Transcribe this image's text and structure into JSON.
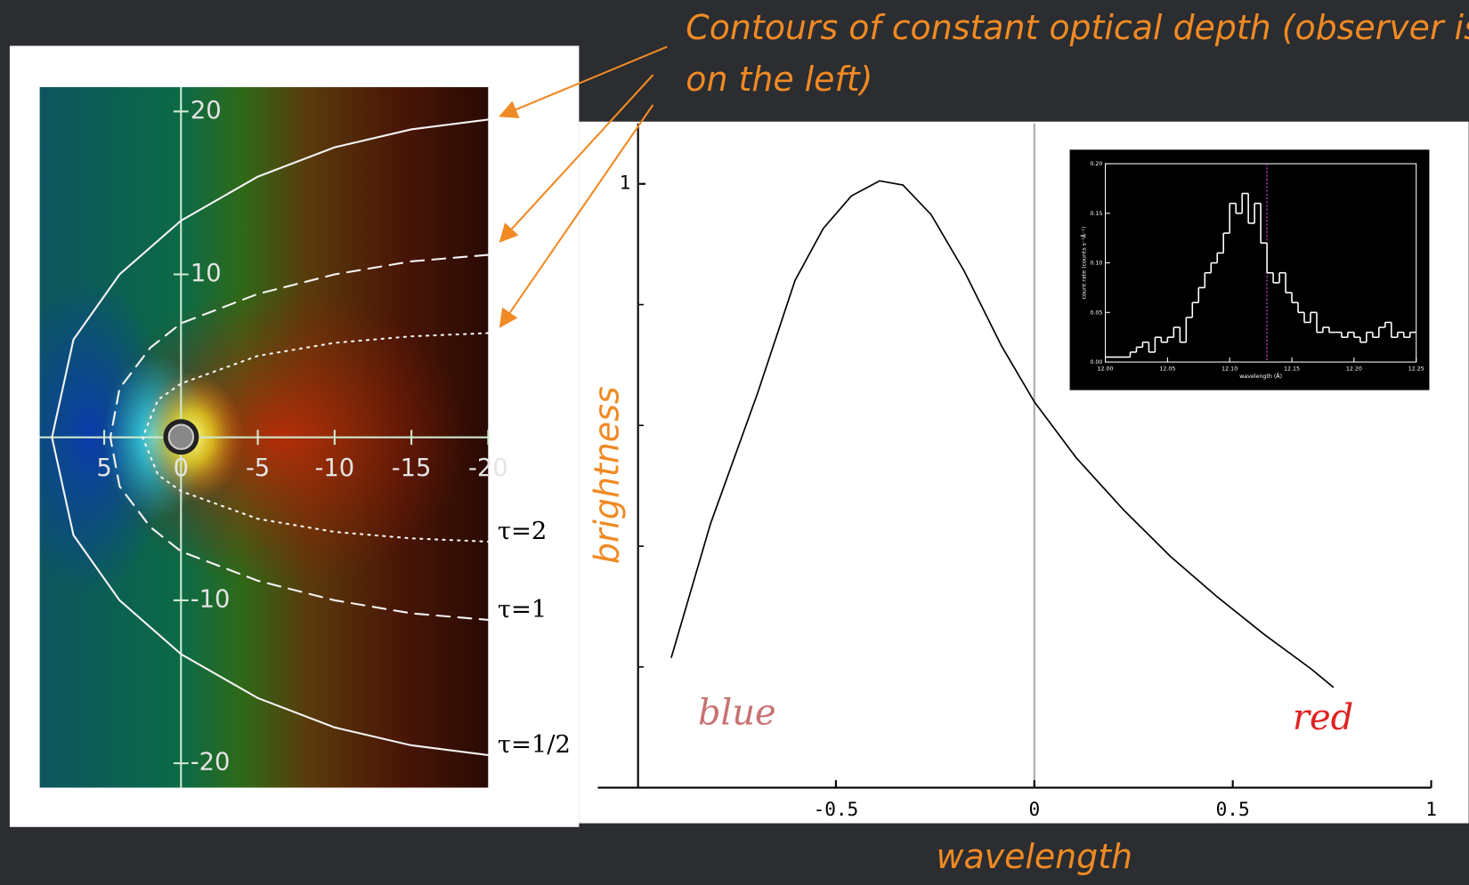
{
  "annotation": [
    "Contours of constant optical depth (observer is",
    "on the left)"
  ],
  "chart_data": [
    {
      "type": "contour",
      "xlim": [
        9.2,
        -20
      ],
      "ylim": [
        -21.5,
        21.5
      ],
      "xticks": [
        5,
        0,
        -5,
        -10,
        -15,
        -20
      ],
      "yticks": [
        20,
        10,
        -10,
        -20
      ],
      "series": [
        {
          "name": "τ=2",
          "line_style": "dotted",
          "color": "#f4f4f4",
          "x": [
            -20,
            -15,
            -10,
            -5,
            0,
            1.5,
            2.5,
            1.5,
            0,
            -5,
            -10,
            -15,
            -20
          ],
          "values": [
            6.4,
            6.2,
            5.8,
            5,
            3.3,
            2.3,
            0,
            -2.3,
            -3.3,
            -5,
            -5.8,
            -6.2,
            -6.4
          ]
        },
        {
          "name": "τ=1",
          "line_style": "dashed",
          "color": "#f4f4f4",
          "x": [
            -20,
            -15,
            -10,
            -5,
            0,
            2,
            4,
            4.6,
            4,
            2,
            0,
            -5,
            -10,
            -15,
            -20
          ],
          "values": [
            11.2,
            10.8,
            10,
            8.8,
            7,
            5.5,
            3,
            0,
            -3,
            -5.5,
            -7,
            -8.8,
            -10,
            -10.8,
            -11.2
          ]
        },
        {
          "name": "τ=1/2",
          "line_style": "solid",
          "color": "#f4f4f4",
          "x": [
            -20,
            -15,
            -10,
            -5,
            0,
            4,
            7,
            8.4,
            7,
            4,
            0,
            -5,
            -10,
            -15,
            -20
          ],
          "values": [
            19.5,
            18.9,
            17.8,
            16,
            13.3,
            10,
            6,
            0,
            -6,
            -10,
            -13.3,
            -16,
            -17.8,
            -18.9,
            -19.5
          ]
        }
      ]
    },
    {
      "type": "line",
      "x_label": "wavelength",
      "y_label": "brightness",
      "xlim": [
        -1.1,
        1
      ],
      "ylim": [
        0,
        1.1
      ],
      "xticks": [
        -0.5,
        0,
        0.5,
        1
      ],
      "yticks": [
        1
      ],
      "minor_yticks": [
        0.2,
        0.4,
        0.6,
        0.8
      ],
      "vline": 0,
      "color": "#000000",
      "x": [
        -0.915,
        -0.816,
        -0.697,
        -0.603,
        -0.532,
        -0.461,
        -0.39,
        -0.331,
        -0.26,
        -0.177,
        -0.083,
        0,
        0.106,
        0.225,
        0.343,
        0.461,
        0.579,
        0.697,
        0.754
      ],
      "values": [
        0.215,
        0.437,
        0.654,
        0.84,
        0.926,
        0.98,
        1.005,
        0.998,
        0.949,
        0.856,
        0.732,
        0.639,
        0.546,
        0.46,
        0.383,
        0.316,
        0.254,
        0.197,
        0.166
      ],
      "annotations": [
        {
          "text": "blue",
          "color": "#c87272"
        },
        {
          "text": "red",
          "color": "#e02222"
        }
      ]
    },
    {
      "type": "histogram",
      "x_label": "wavelength (Å)",
      "y_label": "count rate (counts s⁻¹Å⁻¹)",
      "xlim": [
        12,
        12.25
      ],
      "ylim": [
        0,
        0.2
      ],
      "xticks": [
        {
          "value": 12,
          "label": "12.00"
        },
        {
          "value": 12.05,
          "label": "12.05"
        },
        {
          "value": 12.1,
          "label": "12.10"
        },
        {
          "value": 12.15,
          "label": "12.15"
        },
        {
          "value": 12.2,
          "label": "12.20"
        },
        {
          "value": 12.25,
          "label": "12.25"
        }
      ],
      "yticks": [
        {
          "value": 0,
          "label": "0.00"
        },
        {
          "value": 0.05,
          "label": "0.05"
        },
        {
          "value": 0.1,
          "label": "0.10"
        },
        {
          "value": 0.15,
          "label": "0.15"
        },
        {
          "value": 0.2,
          "label": "0.20"
        }
      ],
      "vline": 12.13,
      "vline_color": "#d040d0",
      "color": "#ffffff",
      "bins": [
        12,
        12.005,
        12.01,
        12.015,
        12.02,
        12.025,
        12.03,
        12.035,
        12.04,
        12.045,
        12.05,
        12.055,
        12.06,
        12.065,
        12.07,
        12.075,
        12.08,
        12.085,
        12.09,
        12.095,
        12.1,
        12.105,
        12.11,
        12.115,
        12.12,
        12.125,
        12.13,
        12.135,
        12.14,
        12.145,
        12.15,
        12.155,
        12.16,
        12.165,
        12.17,
        12.175,
        12.18,
        12.185,
        12.19,
        12.195,
        12.2,
        12.205,
        12.21,
        12.215,
        12.22,
        12.225,
        12.23,
        12.235,
        12.24,
        12.245,
        12.25
      ],
      "values": [
        0.005,
        0.005,
        0.005,
        0.005,
        0.01,
        0.015,
        0.02,
        0.01,
        0.025,
        0.02,
        0.025,
        0.035,
        0.02,
        0.045,
        0.06,
        0.075,
        0.09,
        0.1,
        0.11,
        0.13,
        0.16,
        0.15,
        0.17,
        0.14,
        0.16,
        0.12,
        0.09,
        0.08,
        0.09,
        0.07,
        0.06,
        0.05,
        0.04,
        0.05,
        0.03,
        0.035,
        0.03,
        0.03,
        0.025,
        0.03,
        0.025,
        0.02,
        0.03,
        0.025,
        0.035,
        0.04,
        0.025,
        0.03,
        0.025,
        0.03
      ]
    }
  ]
}
